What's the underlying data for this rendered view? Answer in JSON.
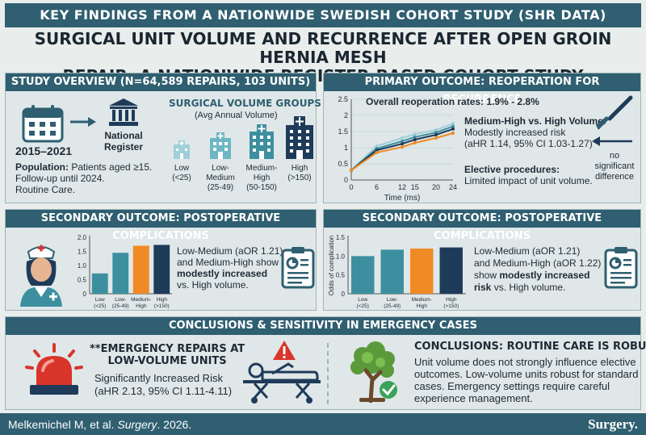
{
  "banner": "KEY FINDINGS FROM A NATIONWIDE SWEDISH COHORT STUDY (SHR DATA)",
  "title_line1": "SURGICAL UNIT VOLUME AND RECURRENCE AFTER OPEN GROIN HERNIA MESH",
  "title_line2": "REPAIR: A NATIONWIDE REGISTER-BASED COHORT STUDY",
  "overview": {
    "header": "STUDY OVERVIEW (N=64,589 REPAIRS, 103 UNITS)",
    "years": "2015–2021",
    "register_line1": "National",
    "register_line2": "Register",
    "population_label": "Population:",
    "population_text": "Patients aged ≥15.",
    "followup": "Follow-up until 2024.",
    "routine": "Routine Care.",
    "groups_title": "SURGICAL VOLUME GROUPS",
    "groups_subtitle": "(Avg Annual Volume)",
    "groups": [
      {
        "line1": "Low",
        "line2": "(<25)"
      },
      {
        "line1": "Low-",
        "line2": "Medium",
        "line3": "(25-49)"
      },
      {
        "line1": "Medium-",
        "line2": "High",
        "line3": "(50-150)"
      },
      {
        "line1": "High",
        "line2": "(>150)"
      }
    ]
  },
  "primary": {
    "header": "PRIMARY OUTCOME: REOPERATION FOR RECURRENCE",
    "rates": "Overall reoperation rates: 1.9% - 2.8%",
    "mh_title": "Medium-High vs. High Volume:",
    "mh_line1": "Modestly increased risk",
    "mh_line2": "(aHR 1.14, 95% CI 1.03-1.27)",
    "elective_title": "Elective procedures:",
    "elective_text": "Limited impact of unit volume.",
    "no_sig_1": "no",
    "no_sig_2": "significant",
    "no_sig_3": "difference"
  },
  "secondary_left": {
    "header": "SECONDARY OUTCOME: POSTOPERATIVE COMPLICATIONS",
    "text1": "Low-Medium (aOR 1.21)",
    "text2": "and Medium-High show",
    "text3": "modestly increased",
    "text4": "vs. High volume."
  },
  "secondary_right": {
    "header": "SECONDARY OUTCOME: POSTOPERATIVE COMPLICATIONS",
    "text1": "Low-Medium (aOR 1.21)",
    "text2": "and Medium-High (aOR 1.22)",
    "text3": "show",
    "text4": "modestly increased",
    "text5": "risk",
    "text6": "vs. High volume."
  },
  "conclusions": {
    "header": "CONCLUSIONS & SENSITIVITY IN EMERGENCY CASES",
    "emerg_line1": "**EMERGENCY REPAIRS AT",
    "emerg_line2": "LOW-VOLUME UNITS",
    "emerg_risk": "Significantly Increased Risk",
    "emerg_ci": "(aHR 2.13, 95% CI 1.11-4.11)",
    "concl_title": "CONCLUSIONS: ROUTINE CARE IS ROBUST",
    "concl_1": "Unit volume does not strongly influence elective",
    "concl_2": "outcomes. Low-volume units robust for standard",
    "concl_3": "cases.  Emergency settings require careful",
    "concl_4": "experience management."
  },
  "footer": {
    "cite_prefix": "Melkemichel M, et al. ",
    "cite_journal": "Surgery",
    "cite_suffix": ". 2026.",
    "brand": "Surgery."
  },
  "colors": {
    "teal_dark": "#2f5f70",
    "teal": "#3d8fa0",
    "orange": "#f08a24",
    "navy": "#1f3b5a",
    "red": "#d9352a"
  },
  "chart_data": [
    {
      "type": "line",
      "xlabel": "Time (ms)",
      "x": [
        0,
        6,
        12,
        15,
        20,
        24
      ],
      "ylim": [
        0,
        2.5
      ],
      "yticks": [
        0,
        0.5,
        1,
        1.5,
        2,
        2.5
      ],
      "series": [
        {
          "values": [
            0.3,
            1.05,
            1.3,
            1.42,
            1.55,
            1.75
          ],
          "color": "#9fd0d8"
        },
        {
          "values": [
            0.3,
            0.97,
            1.2,
            1.33,
            1.47,
            1.66
          ],
          "color": "#3d8fa0"
        },
        {
          "values": [
            0.3,
            0.92,
            1.12,
            1.25,
            1.4,
            1.58
          ],
          "color": "#1f3b5a"
        },
        {
          "values": [
            0.3,
            0.85,
            1.02,
            1.15,
            1.3,
            1.45
          ],
          "color": "#f08a24"
        }
      ]
    },
    {
      "type": "bar",
      "categories": [
        "Low (<25)",
        "Low- (25-49)",
        "Medium- High",
        "High (>150)"
      ],
      "cat_lines": [
        [
          "Low",
          "(<25)"
        ],
        [
          "Low-",
          "(25-49)"
        ],
        [
          "Medium-",
          "High"
        ],
        [
          "High",
          "(>150)"
        ]
      ],
      "values": [
        0.72,
        1.45,
        1.7,
        1.73
      ],
      "ylim": [
        0,
        2.0
      ],
      "yticks": [
        "0",
        "0.5",
        "1.0",
        "1.5",
        "2.0"
      ],
      "colors": [
        "#3d8fa0",
        "#3d8fa0",
        "#f08a24",
        "#1f3b5a"
      ]
    },
    {
      "type": "bar",
      "ylabel": "Odds of complication",
      "categories": [
        "Low (<25)",
        "Low- (25-49)",
        "Medium- High",
        "High (>150)"
      ],
      "cat_lines": [
        [
          "Low",
          "(<25)"
        ],
        [
          "Low-",
          "(25-49)"
        ],
        [
          "Medium-",
          "High"
        ],
        [
          "High",
          "(>150)"
        ]
      ],
      "values": [
        1.0,
        1.17,
        1.2,
        1.23
      ],
      "ylim": [
        0,
        1.5
      ],
      "yticks": [
        "0",
        "0.5",
        "1.0",
        "1.5"
      ],
      "colors": [
        "#3d8fa0",
        "#3d8fa0",
        "#f08a24",
        "#1f3b5a"
      ]
    }
  ]
}
